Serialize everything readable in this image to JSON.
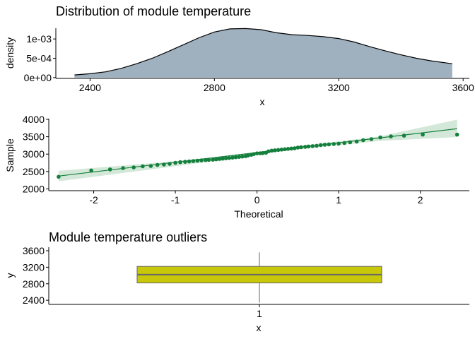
{
  "colors": {
    "density_fill": "#9fb0be",
    "density_line": "#000000",
    "qq_points": "#15803d",
    "qq_line": "#15803d",
    "qq_band": "#cfe6d5",
    "box_fill": "#c8c80a",
    "box_stroke": "#666666"
  },
  "chart_data": [
    {
      "type": "area",
      "title": "Distribution of module temperature",
      "xlabel": "x",
      "ylabel": "density",
      "xlim": [
        2290,
        3620
      ],
      "ylim": [
        -2e-05,
        0.00135
      ],
      "xticks": [
        2400,
        2800,
        3200,
        3600
      ],
      "xtick_labels": [
        "2400",
        "2800",
        "3200",
        "3600"
      ],
      "yticks": [
        0,
        0.0005,
        0.001
      ],
      "ytick_labels": [
        "0e+00",
        "5e-04",
        "1e-03"
      ],
      "x": [
        2350,
        2400,
        2450,
        2500,
        2550,
        2600,
        2650,
        2700,
        2750,
        2800,
        2850,
        2900,
        2950,
        3000,
        3050,
        3100,
        3150,
        3200,
        3250,
        3300,
        3350,
        3400,
        3450,
        3500,
        3565
      ],
      "y": [
        7e-05,
        0.0001,
        0.00015,
        0.00024,
        0.00036,
        0.0005,
        0.00067,
        0.00085,
        0.00103,
        0.00118,
        0.00126,
        0.00127,
        0.00124,
        0.00116,
        0.00111,
        0.00109,
        0.00106,
        0.00101,
        0.00092,
        0.0008,
        0.00069,
        0.00059,
        0.0005,
        0.00043,
        0.00036
      ],
      "grid": false
    },
    {
      "type": "scatter",
      "xlabel": "Theoretical",
      "ylabel": "Sample",
      "xlim": [
        -2.55,
        2.6
      ],
      "ylim": [
        1950,
        4100
      ],
      "xticks": [
        -2,
        -1,
        0,
        1,
        2
      ],
      "xtick_labels": [
        "-2",
        "-1",
        "0",
        "1",
        "2"
      ],
      "yticks": [
        2000,
        2500,
        3000,
        3500,
        4000
      ],
      "ytick_labels": [
        "2000",
        "2500",
        "3000",
        "3500",
        "4000"
      ],
      "points_x": [
        -2.43,
        -2.03,
        -1.8,
        -1.64,
        -1.51,
        -1.4,
        -1.3,
        -1.22,
        -1.14,
        -1.07,
        -1.0,
        -0.94,
        -0.88,
        -0.83,
        -0.78,
        -0.73,
        -0.68,
        -0.63,
        -0.59,
        -0.54,
        -0.5,
        -0.46,
        -0.42,
        -0.38,
        -0.34,
        -0.3,
        -0.26,
        -0.22,
        -0.18,
        -0.14,
        -0.11,
        -0.07,
        -0.04,
        0.0,
        0.04,
        0.07,
        0.11,
        0.14,
        0.18,
        0.22,
        0.26,
        0.3,
        0.34,
        0.38,
        0.42,
        0.46,
        0.5,
        0.54,
        0.59,
        0.63,
        0.68,
        0.73,
        0.78,
        0.83,
        0.88,
        0.94,
        1.0,
        1.07,
        1.14,
        1.22,
        1.3,
        1.4,
        1.51,
        1.64,
        1.8,
        2.03,
        2.45
      ],
      "points_y": [
        2350,
        2530,
        2560,
        2600,
        2620,
        2650,
        2660,
        2690,
        2700,
        2720,
        2750,
        2770,
        2780,
        2790,
        2800,
        2810,
        2820,
        2830,
        2835,
        2840,
        2850,
        2860,
        2870,
        2880,
        2890,
        2900,
        2910,
        2920,
        2930,
        2940,
        2960,
        2980,
        3000,
        3020,
        3025,
        3030,
        3040,
        3080,
        3100,
        3110,
        3120,
        3130,
        3140,
        3150,
        3160,
        3170,
        3190,
        3200,
        3210,
        3220,
        3230,
        3240,
        3260,
        3270,
        3280,
        3290,
        3300,
        3320,
        3340,
        3360,
        3400,
        3430,
        3480,
        3510,
        3530,
        3560,
        3560
      ],
      "fit_line": {
        "x": [
          -2.43,
          2.45
        ],
        "y": [
          2370,
          3730
        ]
      },
      "band_x": [
        -2.43,
        -1.5,
        -0.5,
        0.0,
        0.5,
        1.5,
        2.45
      ],
      "band_low": [
        2220,
        2500,
        2805,
        2990,
        3130,
        3380,
        3490
      ],
      "band_high": [
        2520,
        2700,
        2895,
        3050,
        3225,
        3510,
        3990
      ],
      "grid": false
    },
    {
      "type": "box",
      "title": "Module temperature outliers",
      "xlabel": "x",
      "ylabel": "y",
      "categories": [
        "1"
      ],
      "ylim": [
        2300,
        3600
      ],
      "yticks": [
        2400,
        2800,
        3200,
        3600
      ],
      "ytick_labels": [
        "2400",
        "2800",
        "3200",
        "3600"
      ],
      "box": {
        "min": 2340,
        "q1": 2820,
        "median": 3020,
        "q3": 3220,
        "max": 3560
      },
      "grid": false
    }
  ]
}
